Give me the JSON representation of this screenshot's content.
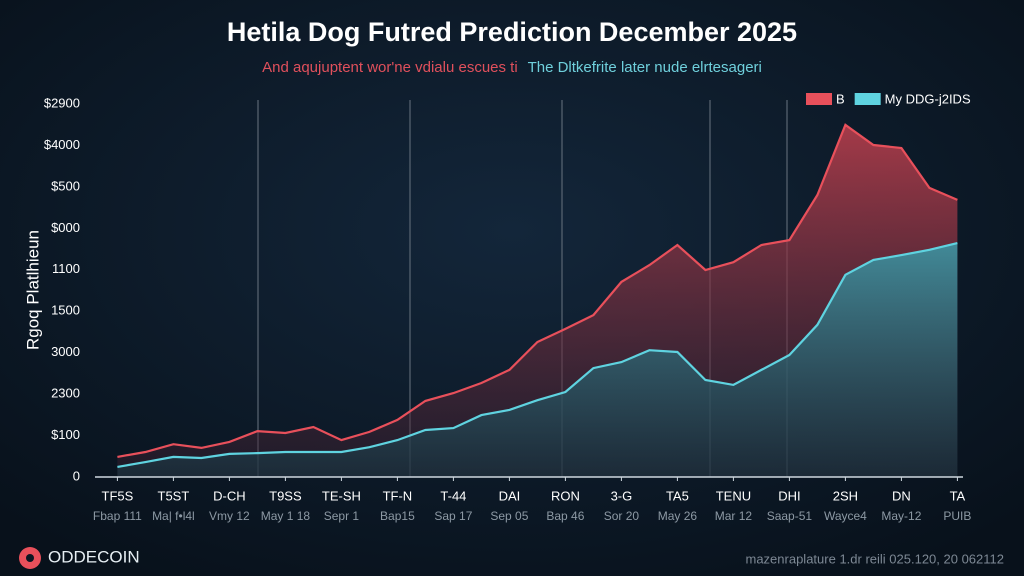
{
  "chart_data": {
    "type": "area",
    "title": "Hetila Dog Futred Prediction December 2025",
    "subtitle": [
      "And aqujuptent wor'ne vdialu escues ti",
      "The Dltkefrite later nude elrtesageri"
    ],
    "y_label": "Rgoq Platlhieun",
    "y_labels": [
      "$2900",
      "$4000",
      "$500",
      "$000",
      "1100",
      "1500",
      "3000",
      "2300",
      "$100",
      "0"
    ],
    "x": [
      0,
      0.5,
      1,
      1.5,
      2,
      2.5,
      3,
      3.5,
      4,
      4.5,
      5,
      5.5,
      6,
      6.5,
      7,
      7.5,
      8,
      8.5,
      9,
      9.5,
      10,
      10.5,
      11,
      11.5,
      12,
      12.5,
      13,
      13.5,
      14,
      14.5,
      15
    ],
    "xlim": [
      -0.4,
      15.1
    ],
    "xticks": [
      {
        "value": 0,
        "label": "TF5S"
      },
      {
        "value": 1,
        "label": "T5ST"
      },
      {
        "value": 2,
        "label": "D-CH"
      },
      {
        "value": 3,
        "label": "T9SS"
      },
      {
        "value": 4,
        "label": "TE-SH"
      },
      {
        "value": 5,
        "label": "TF-N"
      },
      {
        "value": 6,
        "label": "T-44"
      },
      {
        "value": 7,
        "label": "DAI"
      },
      {
        "value": 8,
        "label": "RON"
      },
      {
        "value": 9,
        "label": "3-G"
      },
      {
        "value": 10,
        "label": "TA5"
      },
      {
        "value": 11,
        "label": "TENU"
      },
      {
        "value": 12,
        "label": "DHI"
      },
      {
        "value": 13,
        "label": "2SH"
      },
      {
        "value": 14,
        "label": "DN"
      },
      {
        "value": 15,
        "label": "TA"
      }
    ],
    "xtick_sublabels": [
      "Fbap 111",
      "Ma| f•l4l",
      "Vmy 12",
      "May 1 18",
      "Sepr 1",
      "Bap15",
      "Sap 17",
      "Sep 05",
      "Bap 46",
      "Sor 20",
      "May 26",
      "Mar 12",
      "Saap-51",
      "Wayce4",
      "May-12",
      "PUIB"
    ],
    "ylim": [
      0,
      100
    ],
    "legend": "top-right",
    "series": [
      {
        "name": "B",
        "color": "#e8505b",
        "values": [
          5.4,
          6.7,
          8.8,
          7.8,
          9.4,
          12.3,
          11.8,
          13.4,
          9.9,
          12.1,
          15.3,
          20.4,
          22.5,
          25.2,
          28.7,
          36.2,
          39.7,
          43.4,
          52.3,
          56.8,
          62.2,
          55.5,
          57.6,
          62.2,
          63.5,
          75.6,
          94.4,
          89,
          88.2,
          77.5,
          74.3
        ]
      },
      {
        "name": "My DDG-j2IDS",
        "color": "#5fd3e0",
        "values": [
          2.7,
          4.0,
          5.4,
          5.1,
          6.2,
          6.4,
          6.7,
          6.7,
          6.7,
          8.0,
          9.9,
          12.6,
          13.1,
          16.6,
          18,
          20.6,
          22.8,
          29.2,
          30.8,
          34,
          33.5,
          26,
          24.7,
          28.7,
          32.7,
          40.8,
          54.2,
          58.2,
          59.5,
          60.9,
          62.7
        ]
      }
    ],
    "footer_brand": "ODDECOIN",
    "footer_note": "mazenraplature 1.dr reili 025.120, 20 062112"
  }
}
